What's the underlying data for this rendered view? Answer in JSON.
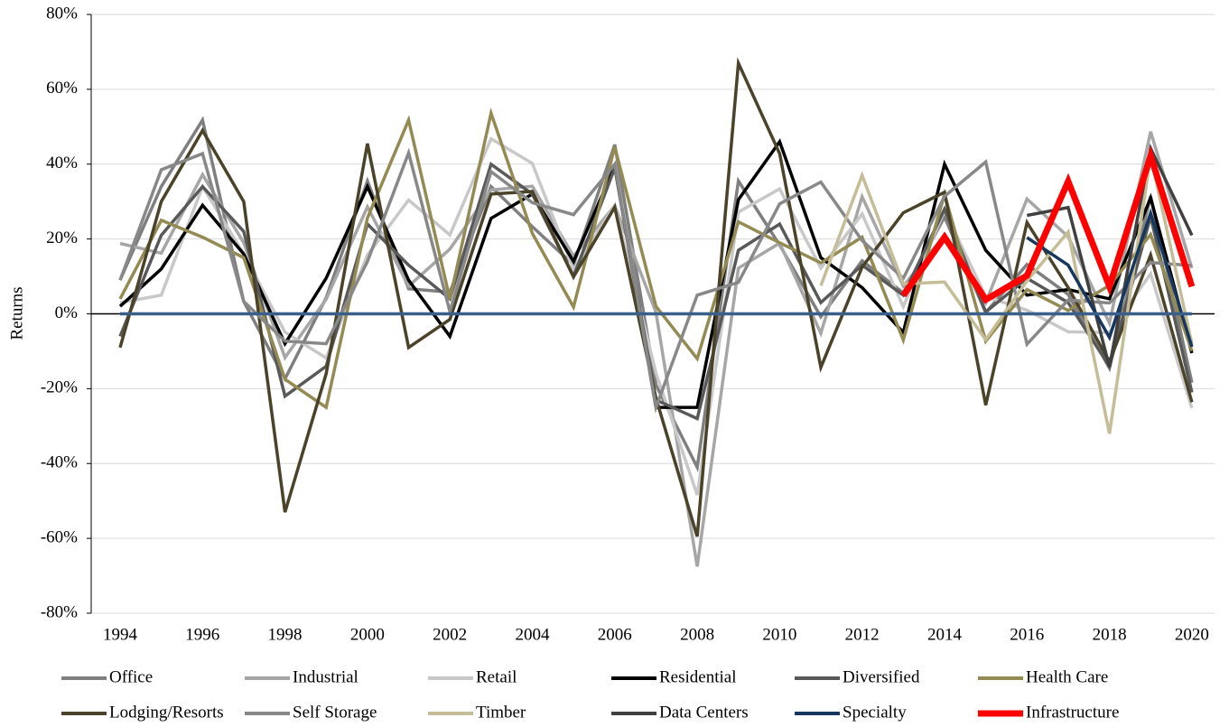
{
  "chart_data": {
    "type": "line",
    "y_label": "Returns",
    "x": [
      1994,
      1995,
      1996,
      1997,
      1998,
      1999,
      2000,
      2001,
      2002,
      2003,
      2004,
      2005,
      2006,
      2007,
      2008,
      2009,
      2010,
      2011,
      2012,
      2013,
      2014,
      2015,
      2016,
      2017,
      2018,
      2019,
      2020
    ],
    "xlim": [
      1993.3,
      2020.55
    ],
    "xticks": [
      1994,
      1996,
      1998,
      2000,
      2002,
      2004,
      2006,
      2008,
      2010,
      2012,
      2014,
      2016,
      2018,
      2020
    ],
    "ylim": [
      -80,
      80
    ],
    "yticks": [
      {
        "value": -80,
        "label": "-80%"
      },
      {
        "value": -60,
        "label": "-60%"
      },
      {
        "value": -40,
        "label": "-40%"
      },
      {
        "value": -20,
        "label": "-20%"
      },
      {
        "value": 0,
        "label": "0%"
      },
      {
        "value": 20,
        "label": "20%"
      },
      {
        "value": 40,
        "label": "40%"
      },
      {
        "value": 60,
        "label": "60%"
      },
      {
        "value": 80,
        "label": "80%"
      }
    ],
    "grid": true,
    "legend": "bottom",
    "series": [
      {
        "name": "Office",
        "color": "#7f7f7f",
        "values": [
          9,
          34,
          51.8,
          3.3,
          -17.4,
          4.3,
          35.5,
          6.7,
          5.8,
          34,
          23.3,
          13.1,
          45.2,
          -19,
          -41,
          35.5,
          18.4,
          -0.8,
          14.2,
          5.6,
          25.9,
          0.3,
          13.2,
          5.2,
          -14.5,
          31.4,
          -18.4
        ]
      },
      {
        "name": "Industrial",
        "color": "#a6a6a6",
        "values": [
          18.8,
          16.2,
          37.2,
          19,
          -11.7,
          3.9,
          28.6,
          7.4,
          17.3,
          33.1,
          34.1,
          15.4,
          28.9,
          0.4,
          -67.5,
          12.2,
          18.9,
          -5.2,
          31.3,
          7.4,
          21,
          3,
          30.7,
          20.6,
          -2.5,
          48.7,
          12.2
        ]
      },
      {
        "name": "Retail",
        "color": "#c8c8c8",
        "values": [
          3,
          5,
          34,
          16,
          -4.9,
          -11.8,
          15.7,
          30.4,
          21.1,
          46.8,
          40.2,
          11.8,
          29,
          -15.8,
          -48.4,
          27.2,
          33.4,
          12.2,
          26.7,
          1.9,
          27.6,
          4.6,
          1,
          -4.8,
          -5,
          10.7,
          -25.2
        ]
      },
      {
        "name": "Residential",
        "color": "#000000",
        "values": [
          2,
          12,
          29,
          16,
          -8,
          9.5,
          34,
          9,
          -6,
          25.5,
          32,
          14,
          39.5,
          -25,
          -25,
          30.5,
          46,
          15,
          7,
          -5,
          40,
          17,
          5,
          6.5,
          4,
          31,
          -10.5
        ]
      },
      {
        "name": "Diversified",
        "color": "#595959",
        "values": [
          -6,
          21,
          34,
          22,
          -22,
          -14,
          24,
          13,
          4,
          40,
          32,
          10,
          39,
          -23,
          -28,
          17,
          24,
          3,
          13,
          5,
          28,
          0.5,
          9.5,
          3,
          -14,
          26,
          -21
        ]
      },
      {
        "name": "Health Care",
        "color": "#948a54",
        "values": [
          4,
          25,
          20.5,
          15,
          -17.5,
          -25,
          25.6,
          51.8,
          3.9,
          53.6,
          21.5,
          1.8,
          44.6,
          2,
          -12,
          24.6,
          19,
          13.6,
          20.5,
          -7,
          32,
          -7.3,
          6.5,
          0.9,
          7.6,
          21.2,
          -9.9
        ]
      },
      {
        "name": "Lodging/Resorts",
        "color": "#4a4229",
        "values": [
          -9,
          30,
          49,
          30,
          -53,
          -16,
          45.5,
          -9,
          -1.5,
          32,
          32.7,
          9.9,
          28.5,
          -22.5,
          -59.5,
          67,
          42.8,
          -14.3,
          12.5,
          27,
          32.5,
          -24.4,
          24.4,
          7,
          -12.8,
          15.7,
          -23.6
        ]
      },
      {
        "name": "Self Storage",
        "color": "#888888",
        "values": [
          9,
          38.5,
          42.8,
          3.3,
          -7.3,
          -8,
          14,
          43,
          0.6,
          38,
          29.7,
          26.5,
          40,
          -25,
          5,
          8.4,
          29.4,
          35.2,
          19.6,
          9.5,
          31.4,
          40.6,
          -8.1,
          3.7,
          2.9,
          13.7,
          12.9
        ]
      },
      {
        "name": "Timber",
        "color": "#c4bd97",
        "values": [
          null,
          null,
          null,
          null,
          null,
          null,
          null,
          null,
          null,
          null,
          null,
          null,
          null,
          null,
          null,
          null,
          null,
          7.5,
          37,
          8,
          8.5,
          -6.9,
          8.8,
          21.9,
          -32,
          42.2,
          -8
        ]
      },
      {
        "name": "Data Centers",
        "color": "#404040",
        "values": [
          null,
          null,
          null,
          null,
          null,
          null,
          null,
          null,
          null,
          null,
          null,
          null,
          null,
          null,
          null,
          null,
          null,
          null,
          null,
          null,
          null,
          null,
          26.3,
          28.4,
          -14.2,
          44.2,
          21
        ]
      },
      {
        "name": "Specialty",
        "color": "#17375e",
        "values": [
          null,
          null,
          null,
          null,
          null,
          null,
          null,
          null,
          null,
          null,
          null,
          null,
          null,
          null,
          null,
          null,
          null,
          null,
          null,
          null,
          null,
          null,
          20.4,
          13,
          -6.3,
          26.9,
          -8.8
        ]
      },
      {
        "name": "Infrastructure",
        "color": "#ff0000",
        "values": [
          null,
          null,
          null,
          null,
          null,
          null,
          null,
          null,
          null,
          null,
          null,
          null,
          null,
          null,
          null,
          null,
          null,
          null,
          null,
          4.9,
          20.5,
          3.8,
          10.2,
          35.4,
          7.3,
          42.2,
          7.3
        ]
      }
    ]
  }
}
